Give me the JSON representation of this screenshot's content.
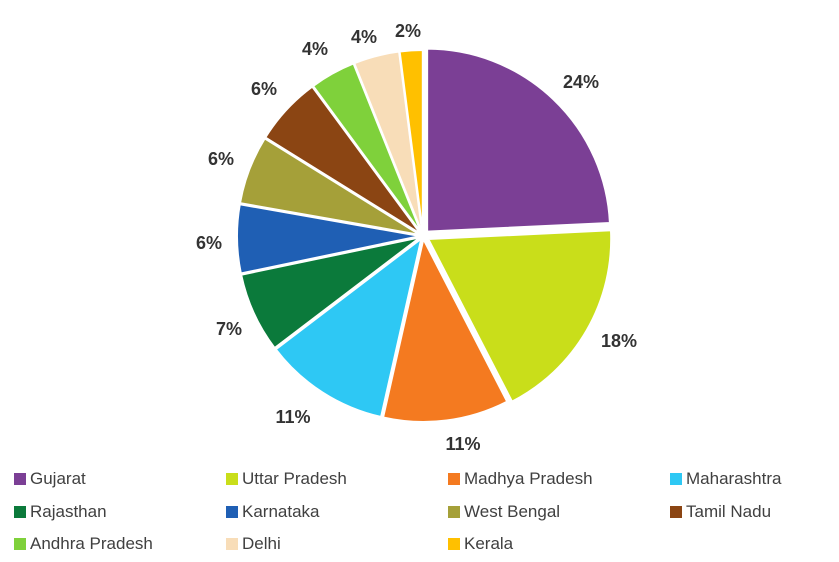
{
  "chart_data": {
    "type": "pie",
    "title": "",
    "categories": [
      "Gujarat",
      "Uttar Pradesh",
      "Madhya Pradesh",
      "Maharashtra",
      "Rajasthan",
      "Karnataka",
      "West Bengal",
      "Tamil Nadu",
      "Andhra Pradesh",
      "Delhi",
      "Kerala"
    ],
    "values": [
      24,
      18,
      11,
      11,
      7,
      6,
      6,
      6,
      4,
      4,
      2
    ],
    "data_labels": [
      "24%",
      "18%",
      "11%",
      "11%",
      "7%",
      "6%",
      "6%",
      "6%",
      "4%",
      "4%",
      "2%"
    ],
    "colors": [
      "#7B3F95",
      "#C9DE1A",
      "#F47A20",
      "#2EC8F4",
      "#0B7A3B",
      "#1F5FB4",
      "#A5A039",
      "#8B4513",
      "#7FD13B",
      "#F8DDB8",
      "#FFC000"
    ],
    "legend_position": "bottom"
  }
}
